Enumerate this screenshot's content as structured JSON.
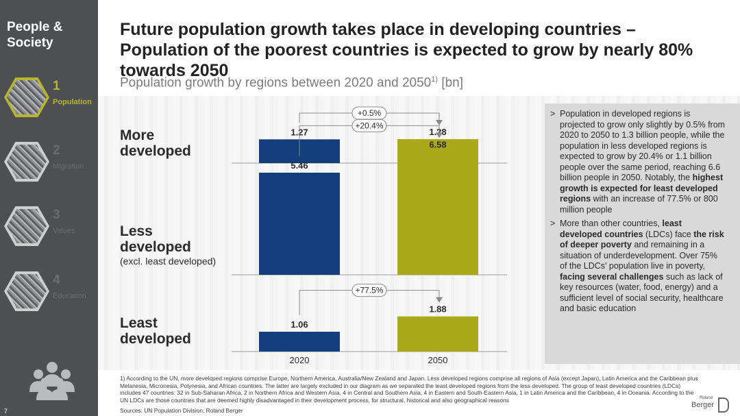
{
  "sidebar": {
    "section_title_line1": "People &",
    "section_title_line2": "Society",
    "items": [
      {
        "num": "1",
        "label": "Population",
        "active": true
      },
      {
        "num": "2",
        "label": "Migration",
        "active": false
      },
      {
        "num": "3",
        "label": "Values",
        "active": false
      },
      {
        "num": "4",
        "label": "Education",
        "active": false
      }
    ],
    "page_number": "7"
  },
  "header": {
    "title": "Future population growth takes place in developing countries – Population of the poorest countries is expected to grow by nearly 80% towards 2050",
    "subtitle": "Population growth by regions between 2020 and 2050",
    "subtitle_sup": "1)",
    "subtitle_unit": "[bn]"
  },
  "rows": [
    {
      "label_line1": "More",
      "label_line2": "developed",
      "sub": ""
    },
    {
      "label_line1": "Less",
      "label_line2": "developed",
      "sub": "(excl. least developed)"
    },
    {
      "label_line1": "Least",
      "label_line2": "developed",
      "sub": ""
    }
  ],
  "chart_data": {
    "type": "bar",
    "x": [
      "2020",
      "2050"
    ],
    "series": [
      {
        "name": "More developed",
        "values": [
          1.27,
          1.28
        ],
        "labels": [
          "1.27",
          "1.28"
        ],
        "growth": "+0.5%"
      },
      {
        "name": "Less developed",
        "values": [
          5.46,
          6.58
        ],
        "labels": [
          "5.46",
          "6.58"
        ],
        "growth": "+20.4%"
      },
      {
        "name": "Least developed",
        "values": [
          1.06,
          1.88
        ],
        "labels": [
          "1.06",
          "1.88"
        ],
        "growth": "+77.5%"
      }
    ],
    "colors": {
      "2020": "#123e7c",
      "2050": "#aaa91a"
    },
    "ylim": [
      0,
      7
    ]
  },
  "info": {
    "p1_a": "Population in developed regions is projected to grow only slightly by 0.5% from 2020 to 2050 to 1.3 billion people, while the population in less developed regions is expected to grow by 20.4% or 1.1 billion people over the same period, reaching 6.6 billion people in 2050. Notably, the ",
    "p1_b": "highest growth is expected for least developed regions",
    "p1_c": " with an increase of 77.5% or 800 million people",
    "p2_a": "More than other countries, ",
    "p2_b": "least developed countries",
    "p2_c": " (LDCs) face ",
    "p2_d": "the risk of deeper poverty",
    "p2_e": " and remaining in a situation of underdevelopment. Over 75% of the LDCs' population live in poverty, ",
    "p2_f": "facing several challenges",
    "p2_g": " such as lack of key resources (water, food, energy) and a sufficient level of social security, healthcare and basic education"
  },
  "footnote": "1) According to the UN, more developed regions comprise Europe, Northern America, Australia/New Zealand and Japan. Less developed regions comprise all regions of Asia (except Japan), Latin America and the Caribbean plus Melanesia, Micronesia, Polynesia, and African countries. The latter are largely excluded in our diagram as we separated the least developed regions from the less developed. The group of least developed countries (LDCs) includes 47 countries: 32 in Sub-Saharan Africa, 2 in Northern Africa and Western Asia, 4 in Central and Southern Asia, 4 in Eastern and South-Eastern Asia, 1 in Latin America and the Caribbean, 4 in Oceania. According to the UN LDCs are those countries that are deemed highly disadvantaged in their development process, for structural, historical and also geographical reasons",
  "sources": "Sources: UN Population Division; Roland Berger",
  "logo": {
    "line1": "Roland",
    "line2": "Berger"
  }
}
